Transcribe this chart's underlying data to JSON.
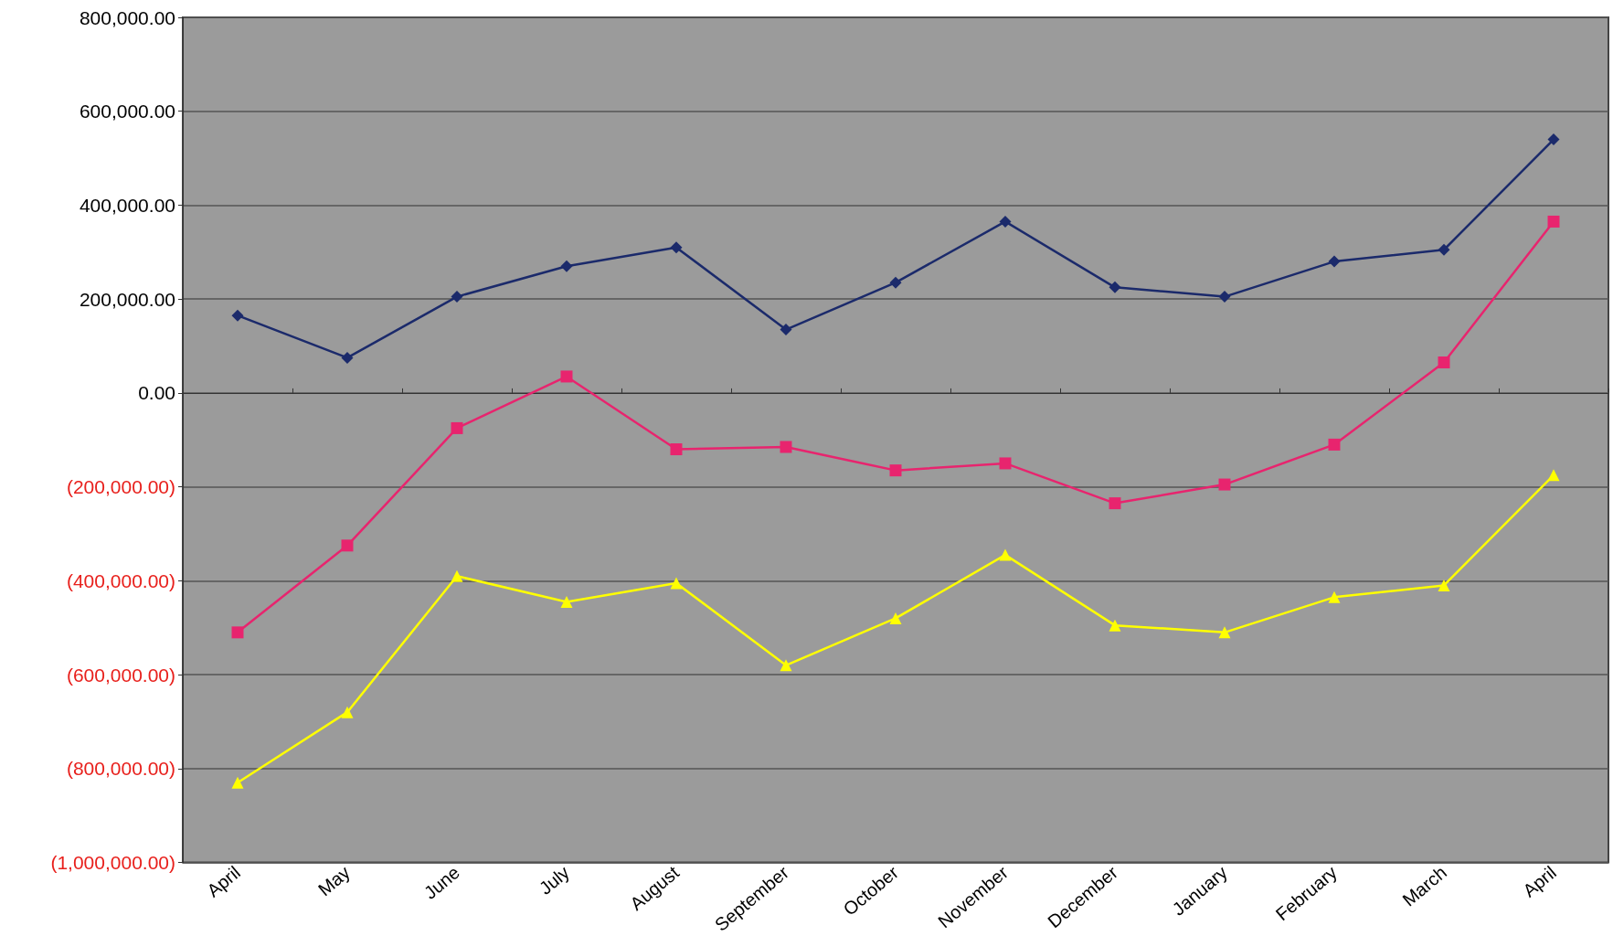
{
  "chart_data": {
    "type": "line",
    "categories": [
      "April",
      "May",
      "June",
      "July",
      "August",
      "September",
      "October",
      "November",
      "December",
      "January",
      "February",
      "March",
      "April"
    ],
    "series": [
      {
        "color": "#1b2a6b",
        "marker": "diamond",
        "values": [
          165000,
          75000,
          205000,
          270000,
          310000,
          135000,
          235000,
          365000,
          225000,
          205000,
          280000,
          305000,
          540000
        ]
      },
      {
        "color": "#e8246e",
        "marker": "square",
        "values": [
          -510000,
          -325000,
          -75000,
          35000,
          -120000,
          -115000,
          -165000,
          -150000,
          -235000,
          -195000,
          -110000,
          65000,
          365000
        ]
      },
      {
        "color": "#ffff00",
        "marker": "triangle",
        "values": [
          -830000,
          -680000,
          -390000,
          -445000,
          -405000,
          -580000,
          -480000,
          -345000,
          -495000,
          -510000,
          -435000,
          -410000,
          -175000
        ]
      }
    ],
    "ylim": [
      -1000000,
      800000
    ],
    "yticks": [
      {
        "value": -1000000,
        "label": "(1,000,000.00)"
      },
      {
        "value": -800000,
        "label": "(800,000.00)"
      },
      {
        "value": -600000,
        "label": "(600,000.00)"
      },
      {
        "value": -400000,
        "label": "(400,000.00)"
      },
      {
        "value": -200000,
        "label": "(200,000.00)"
      },
      {
        "value": 0,
        "label": "0.00"
      },
      {
        "value": 200000,
        "label": "200,000.00"
      },
      {
        "value": 400000,
        "label": "400,000.00"
      },
      {
        "value": 600000,
        "label": "600,000.00"
      },
      {
        "value": 800000,
        "label": "800,000.00"
      }
    ],
    "grid": "y",
    "line_style": "solid"
  }
}
